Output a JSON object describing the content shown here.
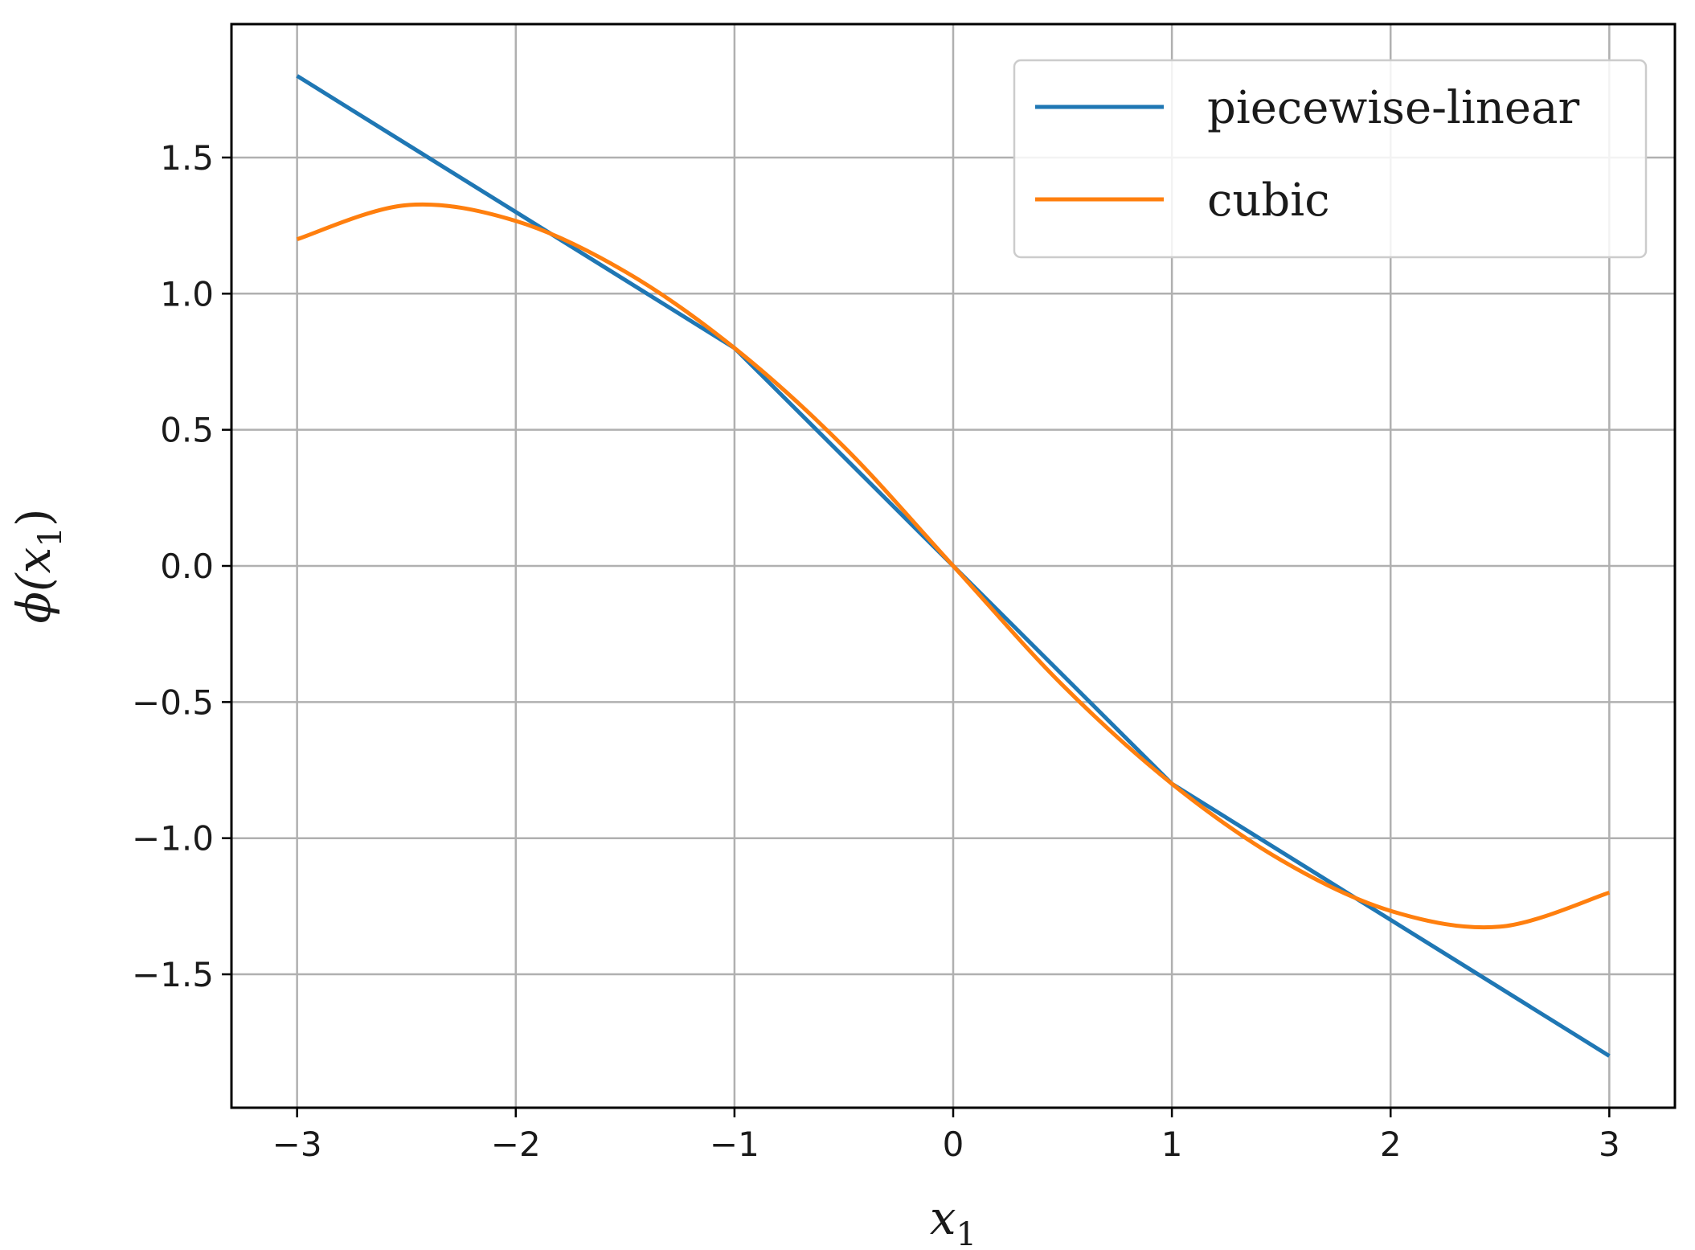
{
  "chart_data": {
    "type": "line",
    "title": "",
    "xlabel": "x",
    "xlabel_sub": "1",
    "ylabel_prefix": "ϕ(x",
    "ylabel_sub": "1",
    "ylabel_suffix": ")",
    "xlim": [
      -3.3,
      3.3
    ],
    "ylim": [
      -1.99,
      1.99
    ],
    "xticks": [
      -3,
      -2,
      -1,
      0,
      1,
      2,
      3
    ],
    "xtick_labels": [
      "−3",
      "−2",
      "−1",
      "0",
      "1",
      "2",
      "3"
    ],
    "yticks": [
      -1.5,
      -1.0,
      -0.5,
      0.0,
      0.5,
      1.0,
      1.5
    ],
    "ytick_labels": [
      "−1.5",
      "−1.0",
      "−0.5",
      "0.0",
      "0.5",
      "1.0",
      "1.5"
    ],
    "grid": true,
    "legend_position": "upper right",
    "series": [
      {
        "name": "piecewise-linear",
        "color": "#1f77b4",
        "x": [
          -3,
          -1,
          1,
          3
        ],
        "y": [
          1.8,
          0.8,
          -0.8,
          -1.8
        ]
      },
      {
        "name": "cubic",
        "color": "#ff7f0e",
        "x": [
          -3,
          -2.5,
          -2,
          -1.5,
          -1,
          -0.5,
          0,
          0.5,
          1,
          1.5,
          2,
          2.5,
          3
        ],
        "y": [
          1.2,
          1.325,
          1.267,
          1.081,
          0.8,
          0.438,
          0,
          -0.438,
          -0.8,
          -1.081,
          -1.267,
          -1.325,
          -1.2
        ]
      }
    ]
  }
}
